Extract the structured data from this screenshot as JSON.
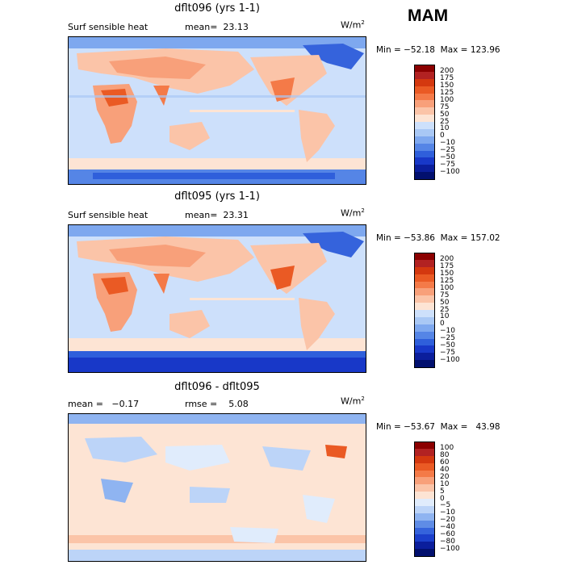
{
  "season": "MAM",
  "chart_data": [
    {
      "type": "heatmap",
      "title": "dflt096 (yrs 1-1)",
      "variable": "Surf sensible heat",
      "stat_text": "mean=  23.13",
      "units": "W/m",
      "units_exp": "2",
      "minmax_text": "Min = −52.18  Max = 123.96",
      "min": -52.18,
      "max": 123.96,
      "mean": 23.13,
      "levels": [
        "200",
        "175",
        "150",
        "125",
        "100",
        "75",
        "50",
        "25",
        "10",
        "0",
        "−10",
        "−25",
        "−50",
        "−75",
        "−100"
      ],
      "colors": [
        "#8b0000",
        "#b22222",
        "#d4380f",
        "#ea5a24",
        "#f47a48",
        "#f8a07a",
        "#fbc4a8",
        "#fde4d4",
        "#cde0fb",
        "#a9c8f5",
        "#7ea8ef",
        "#5585e6",
        "#2f5fdb",
        "#1838c8",
        "#0b1e9c",
        "#02106e"
      ]
    },
    {
      "type": "heatmap",
      "title": "dflt095 (yrs 1-1)",
      "variable": "Surf sensible heat",
      "stat_text": "mean=  23.31",
      "units": "W/m",
      "units_exp": "2",
      "minmax_text": "Min = −53.86  Max = 157.02",
      "min": -53.86,
      "max": 157.02,
      "mean": 23.31,
      "levels": [
        "200",
        "175",
        "150",
        "125",
        "100",
        "75",
        "50",
        "25",
        "10",
        "0",
        "−10",
        "−25",
        "−50",
        "−75",
        "−100"
      ],
      "colors": [
        "#8b0000",
        "#b22222",
        "#d4380f",
        "#ea5a24",
        "#f47a48",
        "#f8a07a",
        "#fbc4a8",
        "#fde4d4",
        "#cde0fb",
        "#a9c8f5",
        "#7ea8ef",
        "#5585e6",
        "#2f5fdb",
        "#1838c8",
        "#0b1e9c",
        "#02106e"
      ]
    },
    {
      "type": "heatmap",
      "title": "dflt096 - dflt095",
      "variable": "",
      "stat_text": "mean =   −0.17",
      "stat_text2": "rmse =    5.08",
      "units": "W/m",
      "units_exp": "2",
      "minmax_text": "Min = −53.67  Max =   43.98",
      "min": -53.67,
      "max": 43.98,
      "mean": -0.17,
      "rmse": 5.08,
      "levels": [
        "100",
        "80",
        "60",
        "40",
        "20",
        "10",
        "5",
        "0",
        "−5",
        "−10",
        "−20",
        "−40",
        "−60",
        "−80",
        "−100"
      ],
      "colors": [
        "#8b0000",
        "#b22222",
        "#d4380f",
        "#ea5a24",
        "#f47a48",
        "#f8a07a",
        "#fbc4a8",
        "#fde4d4",
        "#e0ecfc",
        "#bcd4f8",
        "#8fb4f1",
        "#5f8ce6",
        "#3563dc",
        "#1b3fcb",
        "#0b1e9c",
        "#02106e"
      ]
    }
  ]
}
